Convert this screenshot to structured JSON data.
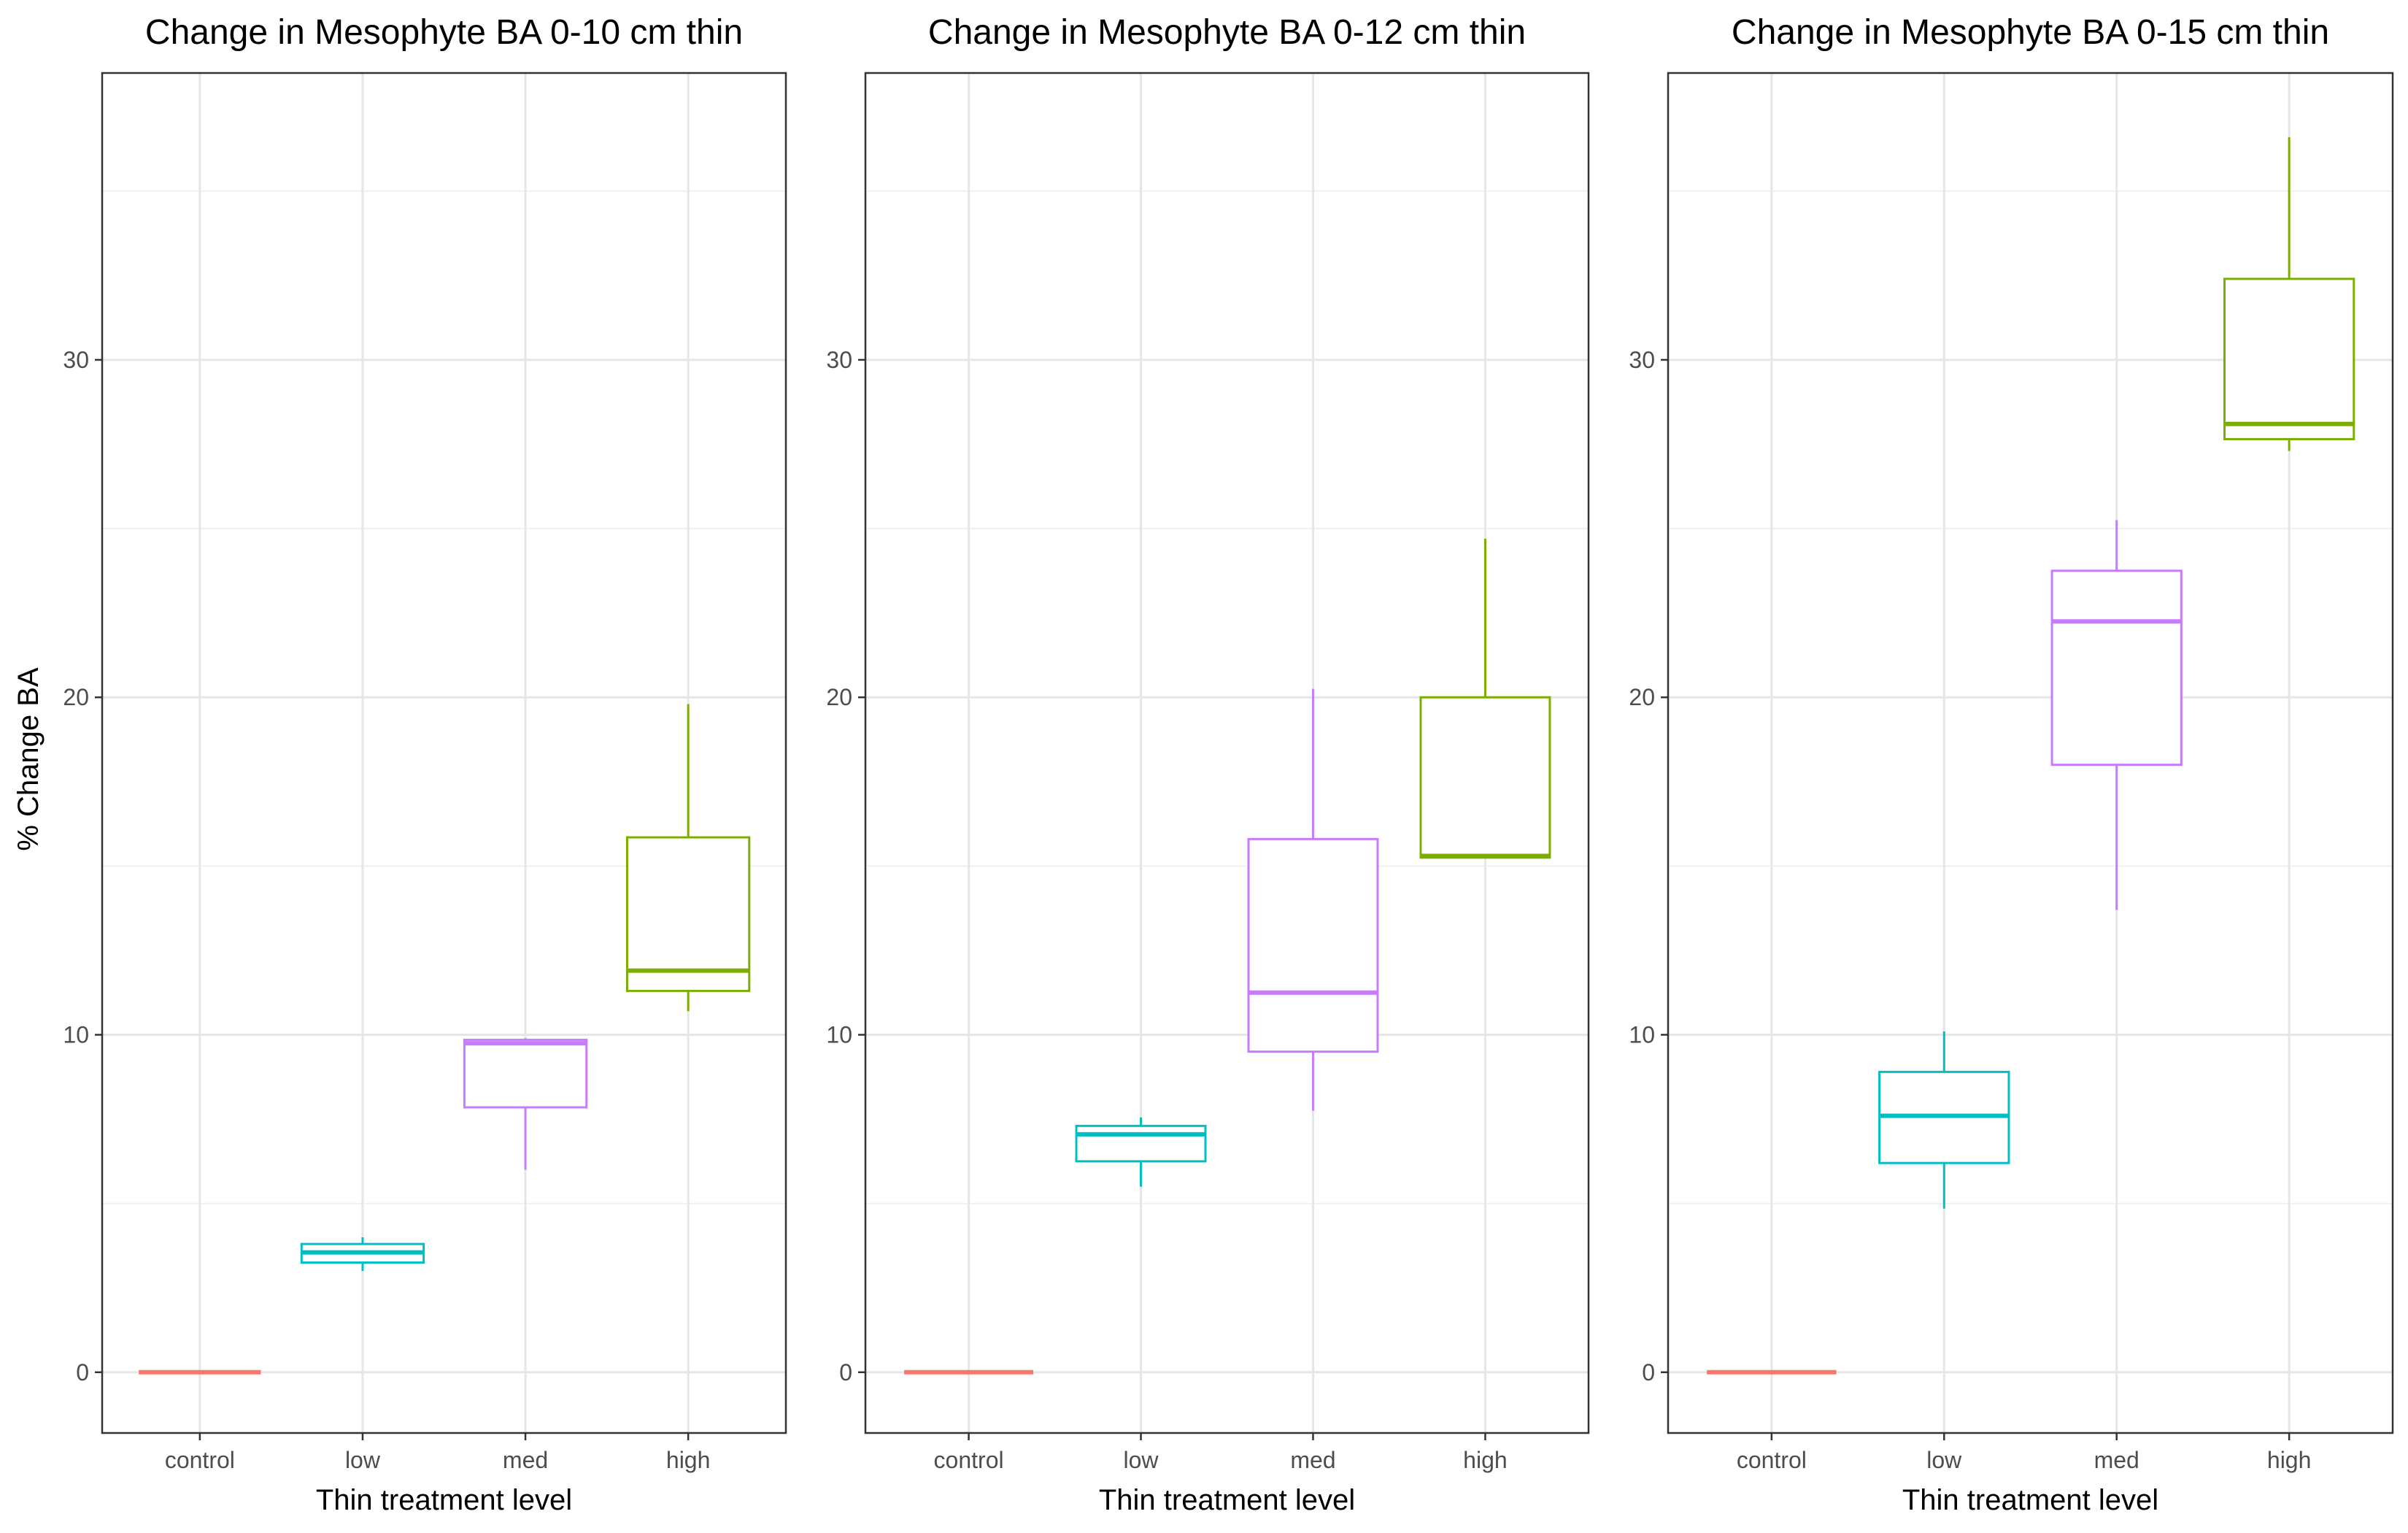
{
  "figure": {
    "ylabel": "% Change BA",
    "xlabel": "Thin treatment level"
  },
  "chart_data": [
    {
      "type": "box",
      "title": "Change in Mesophyte BA 0-10 cm thin",
      "xlabel": "Thin treatment level",
      "ylabel": "% Change BA",
      "categories": [
        "control",
        "low",
        "med",
        "high"
      ],
      "colors": [
        "#F8766D",
        "#00BFC4",
        "#C77CFF",
        "#7CAE00"
      ],
      "ylim": [
        -1.8,
        38.5
      ],
      "yticks": [
        0,
        10,
        20,
        30
      ],
      "grid": true,
      "boxes": [
        {
          "category": "control",
          "min": 0,
          "q1": 0,
          "median": 0,
          "q3": 0,
          "max": 0
        },
        {
          "category": "low",
          "min": 3.0,
          "q1": 3.25,
          "median": 3.55,
          "q3": 3.8,
          "max": 4.0
        },
        {
          "category": "med",
          "min": 6.0,
          "q1": 7.85,
          "median": 9.75,
          "q3": 9.85,
          "max": 9.9
        },
        {
          "category": "high",
          "min": 10.7,
          "q1": 11.3,
          "median": 11.9,
          "q3": 15.85,
          "max": 19.8
        }
      ]
    },
    {
      "type": "box",
      "title": "Change in Mesophyte BA 0-12 cm thin",
      "xlabel": "Thin treatment level",
      "ylabel": "",
      "categories": [
        "control",
        "low",
        "med",
        "high"
      ],
      "colors": [
        "#F8766D",
        "#00BFC4",
        "#C77CFF",
        "#7CAE00"
      ],
      "ylim": [
        -1.8,
        38.5
      ],
      "yticks": [
        0,
        10,
        20,
        30
      ],
      "grid": true,
      "boxes": [
        {
          "category": "control",
          "min": 0,
          "q1": 0,
          "median": 0,
          "q3": 0,
          "max": 0
        },
        {
          "category": "low",
          "min": 5.5,
          "q1": 6.25,
          "median": 7.05,
          "q3": 7.3,
          "max": 7.55
        },
        {
          "category": "med",
          "min": 7.75,
          "q1": 9.5,
          "median": 11.25,
          "q3": 15.8,
          "max": 20.25
        },
        {
          "category": "high",
          "min": 15.25,
          "q1": 15.25,
          "median": 15.3,
          "q3": 20.0,
          "max": 24.7
        }
      ]
    },
    {
      "type": "box",
      "title": "Change in Mesophyte BA 0-15 cm thin",
      "xlabel": "Thin treatment level",
      "ylabel": "",
      "categories": [
        "control",
        "low",
        "med",
        "high"
      ],
      "colors": [
        "#F8766D",
        "#00BFC4",
        "#C77CFF",
        "#7CAE00"
      ],
      "ylim": [
        -1.8,
        38.5
      ],
      "yticks": [
        0,
        10,
        20,
        30
      ],
      "grid": true,
      "boxes": [
        {
          "category": "control",
          "min": 0,
          "q1": 0,
          "median": 0,
          "q3": 0,
          "max": 0
        },
        {
          "category": "low",
          "min": 4.85,
          "q1": 6.2,
          "median": 7.6,
          "q3": 8.9,
          "max": 10.1
        },
        {
          "category": "med",
          "min": 13.7,
          "q1": 18.0,
          "median": 22.25,
          "q3": 23.75,
          "max": 25.25
        },
        {
          "category": "high",
          "min": 27.3,
          "q1": 27.65,
          "median": 28.1,
          "q3": 32.4,
          "max": 36.6
        }
      ]
    }
  ]
}
